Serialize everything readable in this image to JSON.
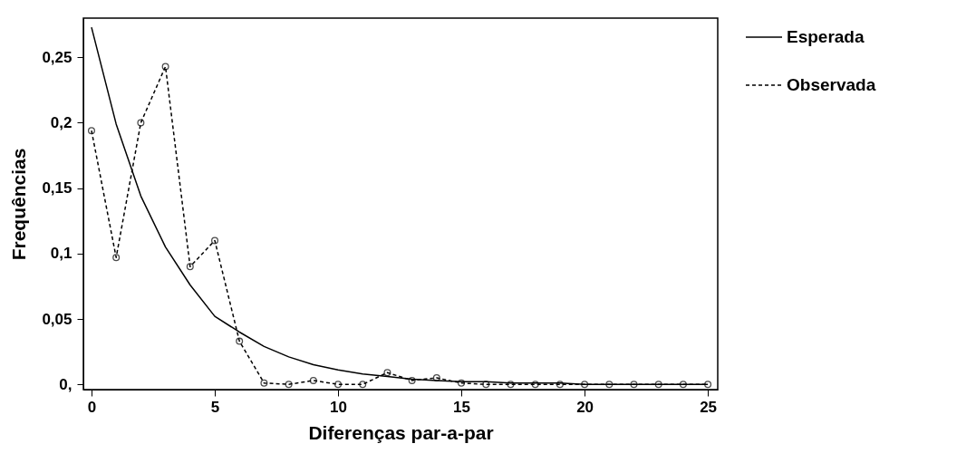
{
  "chart_data": {
    "type": "line",
    "xlabel": "Diferenças par-a-par",
    "ylabel": "Frequências",
    "x": [
      0,
      1,
      2,
      3,
      4,
      5,
      6,
      7,
      8,
      9,
      10,
      11,
      12,
      13,
      14,
      15,
      16,
      17,
      18,
      19,
      20,
      21,
      22,
      23,
      24,
      25
    ],
    "xlim": [
      -0.33,
      25.4
    ],
    "xticks": [
      0,
      5,
      10,
      15,
      20,
      25
    ],
    "ylim": [
      -0.004,
      0.28
    ],
    "yticks": [
      {
        "value": 0,
        "label": "0,"
      },
      {
        "value": 0.05,
        "label": "0,05"
      },
      {
        "value": 0.1,
        "label": "0,1"
      },
      {
        "value": 0.15,
        "label": "0,15"
      },
      {
        "value": 0.2,
        "label": "0,2"
      },
      {
        "value": 0.25,
        "label": "0,25"
      }
    ],
    "grid": false,
    "legend": "top right",
    "series": [
      {
        "name": "Esperada",
        "color": "#000000",
        "line_style": "solid",
        "marker": "none",
        "values": [
          0.273,
          0.199,
          0.144,
          0.105,
          0.076,
          0.052,
          0.04,
          0.029,
          0.021,
          0.015,
          0.011,
          0.008,
          0.006,
          0.004,
          0.003,
          0.002,
          0.002,
          0.001,
          0.001,
          0.001,
          0,
          0,
          0,
          0,
          0,
          0
        ]
      },
      {
        "name": "Observada",
        "color": "#000000",
        "line_style": "dashed",
        "marker": "circle",
        "values": [
          0.194,
          0.097,
          0.2,
          0.243,
          0.09,
          0.11,
          0.033,
          0.001,
          0,
          0.003,
          0,
          0,
          0.009,
          0.003,
          0.005,
          0.001,
          0,
          0,
          0,
          0,
          0,
          0,
          0,
          0,
          0,
          0
        ]
      }
    ]
  }
}
